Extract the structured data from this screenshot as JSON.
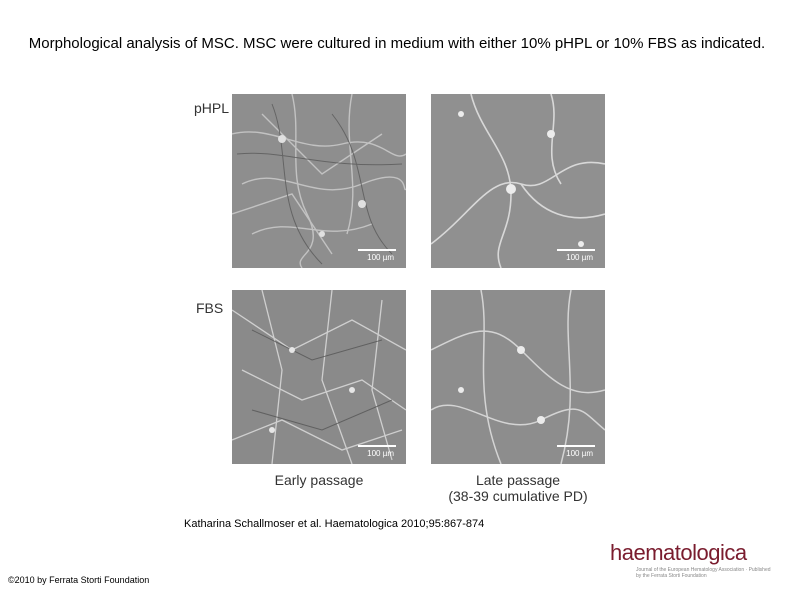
{
  "title": "Morphological analysis of MSC. MSC were cultured in medium with either 10% pHPL or 10% FBS as indicated.",
  "figure": {
    "rows": [
      {
        "label": "pHPL"
      },
      {
        "label": "FBS"
      }
    ],
    "columns": [
      {
        "label": "Early passage"
      },
      {
        "label_line1": "Late passage",
        "label_line2": "(38-39 cumulative PD)"
      }
    ],
    "scale_bar_label": "100 µm"
  },
  "citation": "Katharina Schallmoser et al. Haematologica 2010;95:867-874",
  "copyright": "©2010 by Ferrata Storti Foundation",
  "logo": {
    "wordmark": "haematologica",
    "tagline": "Journal of the European Hematology Association · Published by the Ferrata Storti Foundation"
  },
  "colors": {
    "logo": "#7a1c2e",
    "panel_gray": "#8c8c8c"
  }
}
